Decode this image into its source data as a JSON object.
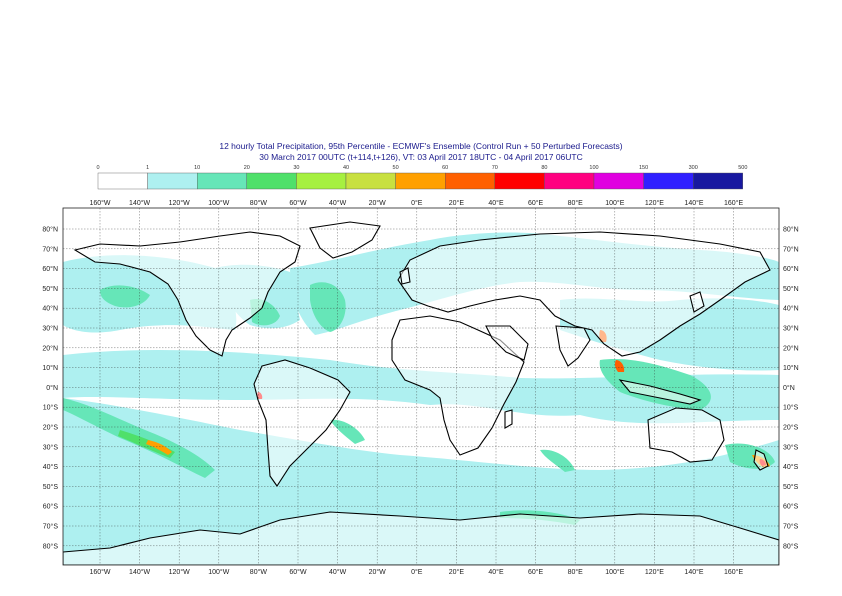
{
  "title_line1": "12 hourly Total Precipitation, 95th Percentile - ECMWF's Ensemble (Control Run + 50 Perturbed Forecasts)",
  "title_line2": "30 March 2017 00UTC (t+114,t+126), VT: 03 April 2017 18UTC - 04 April 2017 06UTC",
  "legend": {
    "thresholds": [
      "0",
      "1",
      "10",
      "20",
      "30",
      "40",
      "50",
      "60",
      "70",
      "80",
      "100",
      "150",
      "300",
      "500"
    ],
    "colors": [
      "#ffffff",
      "#aef0f0",
      "#66e6b8",
      "#4fe06a",
      "#a6f040",
      "#c8e040",
      "#ffa000",
      "#ff6000",
      "#ff0000",
      "#ff0080",
      "#e000e0",
      "#3020ff",
      "#1818a0"
    ]
  },
  "axes": {
    "lon_labels": [
      "160°W",
      "140°W",
      "120°W",
      "100°W",
      "80°W",
      "60°W",
      "40°W",
      "20°W",
      "0°E",
      "20°E",
      "40°E",
      "60°E",
      "80°E",
      "100°E",
      "120°E",
      "140°E",
      "160°E"
    ],
    "lat_labels": [
      "80°N",
      "70°N",
      "60°N",
      "50°N",
      "40°N",
      "30°N",
      "20°N",
      "10°N",
      "0°N",
      "10°S",
      "20°S",
      "30°S",
      "40°S",
      "50°S",
      "60°S",
      "70°S",
      "80°S"
    ]
  },
  "colors": {
    "ocean_light": "#aef0f0",
    "band_green": "#66e6b8",
    "band_bright": "#4fe06a",
    "coast": "#000000",
    "grid": "#333333",
    "title": "#1a1a8c"
  }
}
